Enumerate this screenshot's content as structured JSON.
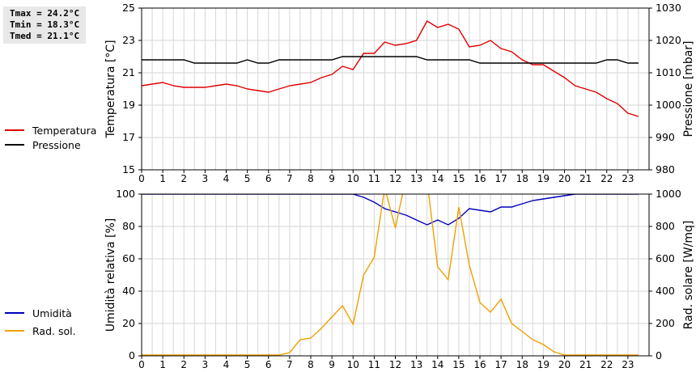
{
  "stats": {
    "tmax": "Tmax = 24.2°C",
    "tmin": "Tmin = 18.3°C",
    "tmed": "Tmed = 21.1°C"
  },
  "legend_top": [
    {
      "label": "Temperatura",
      "color": "#dd0000"
    },
    {
      "label": "Pressione",
      "color": "#000000"
    }
  ],
  "legend_bottom": [
    {
      "label": "Umidità",
      "color": "#0000bb"
    },
    {
      "label": "Rad. sol.",
      "color": "#f0a000"
    }
  ],
  "chart_data": [
    {
      "type": "line",
      "xlim": [
        0,
        24
      ],
      "x_ticks": [
        "0",
        "1",
        "2",
        "3",
        "4",
        "5",
        "6",
        "7",
        "8",
        "9",
        "10",
        "11",
        "12",
        "13",
        "14",
        "15",
        "16",
        "17",
        "18",
        "19",
        "20",
        "21",
        "22",
        "23"
      ],
      "ylabel": "Temperatura [°C]",
      "ylim": [
        15,
        25
      ],
      "y_ticks": [
        "15",
        "17",
        "19",
        "21",
        "23",
        "25"
      ],
      "y2label": "Pressione [mbar]",
      "y2lim": [
        980,
        1030
      ],
      "y2_ticks": [
        "980",
        "990",
        "1000",
        "1010",
        "1020",
        "1030"
      ],
      "grid": true,
      "series": [
        {
          "name": "Temperatura",
          "color": "#dd0000",
          "axis": "left",
          "x": [
            0,
            0.5,
            1,
            1.5,
            2,
            2.5,
            3,
            3.5,
            4,
            4.5,
            5,
            5.5,
            6,
            6.5,
            7,
            7.5,
            8,
            8.5,
            9,
            9.5,
            10,
            10.5,
            11,
            11.5,
            12,
            12.5,
            13,
            13.5,
            14,
            14.5,
            15,
            15.5,
            16,
            16.5,
            17,
            17.5,
            18,
            18.5,
            19,
            19.5,
            20,
            20.5,
            21,
            21.5,
            22,
            22.5,
            23,
            23.5
          ],
          "values": [
            20.2,
            20.3,
            20.4,
            20.2,
            20.1,
            20.1,
            20.1,
            20.2,
            20.3,
            20.2,
            20.0,
            19.9,
            19.8,
            20.0,
            20.2,
            20.3,
            20.4,
            20.7,
            20.9,
            21.4,
            21.2,
            22.2,
            22.2,
            22.9,
            22.7,
            22.8,
            23.0,
            24.2,
            23.8,
            24.0,
            23.7,
            22.6,
            22.7,
            23.0,
            22.5,
            22.3,
            21.8,
            21.5,
            21.5,
            21.1,
            20.7,
            20.2,
            20.0,
            19.8,
            19.4,
            19.1,
            18.5,
            18.3
          ]
        },
        {
          "name": "Pressione",
          "color": "#000000",
          "axis": "right",
          "x": [
            0,
            0.5,
            1,
            1.5,
            2,
            2.5,
            3,
            3.5,
            4,
            4.5,
            5,
            5.5,
            6,
            6.5,
            7,
            7.5,
            8,
            8.5,
            9,
            9.5,
            10,
            10.5,
            11,
            11.5,
            12,
            12.5,
            13,
            13.5,
            14,
            14.5,
            15,
            15.5,
            16,
            16.5,
            17,
            17.5,
            18,
            18.5,
            19,
            19.5,
            20,
            20.5,
            21,
            21.5,
            22,
            22.5,
            23,
            23.5
          ],
          "values": [
            1014,
            1014,
            1014,
            1014,
            1014,
            1013,
            1013,
            1013,
            1013,
            1013,
            1014,
            1013,
            1013,
            1014,
            1014,
            1014,
            1014,
            1014,
            1014,
            1015,
            1015,
            1015,
            1015,
            1015,
            1015,
            1015,
            1015,
            1014,
            1014,
            1014,
            1014,
            1014,
            1013,
            1013,
            1013,
            1013,
            1013,
            1013,
            1013,
            1013,
            1013,
            1013,
            1013,
            1013,
            1014,
            1014,
            1013,
            1013
          ]
        }
      ]
    },
    {
      "type": "line",
      "xlim": [
        0,
        24
      ],
      "x_ticks": [
        "0",
        "1",
        "2",
        "3",
        "4",
        "5",
        "6",
        "7",
        "8",
        "9",
        "10",
        "11",
        "12",
        "13",
        "14",
        "15",
        "16",
        "17",
        "18",
        "19",
        "20",
        "21",
        "22",
        "23"
      ],
      "ylabel": "Umidità relativa [%]",
      "ylim": [
        0,
        100
      ],
      "y_ticks": [
        "0",
        "20",
        "40",
        "60",
        "80",
        "100"
      ],
      "y2label": "Rad. solare [W/mq]",
      "y2lim": [
        0,
        1000
      ],
      "y2_ticks": [
        "0",
        "200",
        "400",
        "600",
        "800",
        "1000"
      ],
      "grid": true,
      "series": [
        {
          "name": "Umidità",
          "color": "#0000bb",
          "axis": "left",
          "x": [
            0,
            1,
            2,
            3,
            4,
            5,
            6,
            7,
            8,
            9,
            9.5,
            10,
            10.5,
            11,
            11.5,
            12,
            12.5,
            13,
            13.5,
            14,
            14.5,
            15,
            15.5,
            16,
            16.5,
            17,
            17.5,
            18,
            18.5,
            19,
            19.5,
            20,
            20.5,
            21,
            22,
            23,
            23.5
          ],
          "values": [
            100,
            100,
            100,
            100,
            100,
            100,
            100,
            100,
            100,
            100,
            100,
            100,
            98,
            95,
            91,
            89,
            87,
            84,
            81,
            84,
            81,
            85,
            91,
            90,
            89,
            92,
            92,
            94,
            96,
            97,
            98,
            99,
            100,
            100,
            100,
            100,
            100
          ]
        },
        {
          "name": "Rad. sol.",
          "color": "#f0a000",
          "axis": "right",
          "x": [
            0,
            0.5,
            1,
            1.5,
            2,
            2.5,
            3,
            3.5,
            4,
            4.5,
            5,
            5.5,
            6,
            6.5,
            7,
            7.5,
            8,
            8.5,
            9,
            9.5,
            10,
            10.5,
            11,
            11.5,
            12,
            12.5,
            13,
            13.5,
            14,
            14.5,
            15,
            15.5,
            16,
            16.5,
            17,
            17.5,
            18,
            18.5,
            19,
            19.5,
            20,
            20.5,
            21,
            21.5,
            22,
            22.5,
            23,
            23.5
          ],
          "values": [
            5,
            5,
            5,
            5,
            5,
            5,
            5,
            5,
            5,
            5,
            5,
            5,
            5,
            5,
            20,
            100,
            110,
            170,
            240,
            310,
            195,
            500,
            610,
            1040,
            790,
            1100,
            1120,
            1080,
            550,
            470,
            920,
            560,
            330,
            270,
            350,
            200,
            150,
            100,
            70,
            25,
            5,
            5,
            5,
            5,
            5,
            5,
            5,
            5
          ]
        }
      ]
    }
  ]
}
